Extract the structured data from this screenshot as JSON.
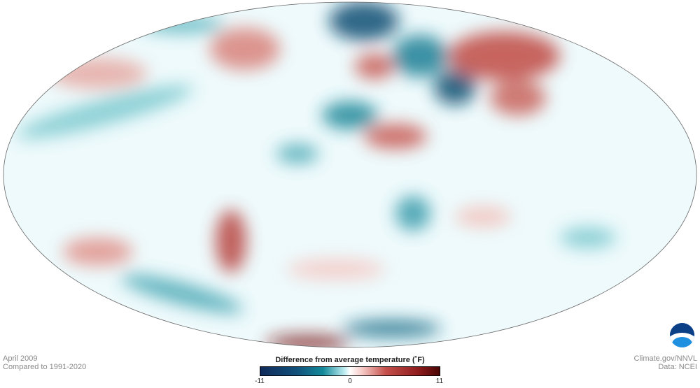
{
  "title": {
    "date": "April 2009",
    "baseline": "Compared to 1991-2020"
  },
  "credits": {
    "source": "Climate.gov/NNVL",
    "data": "Data: NCEI"
  },
  "legend": {
    "title": "Difference from average temperature  (˚F)",
    "min": "-11",
    "mid": "0",
    "max": "11",
    "colors": {
      "cold": "#0f2a5a",
      "neutral": "#ffffff",
      "warm": "#4a0505"
    }
  },
  "logo": {
    "text": "NOAA"
  }
}
